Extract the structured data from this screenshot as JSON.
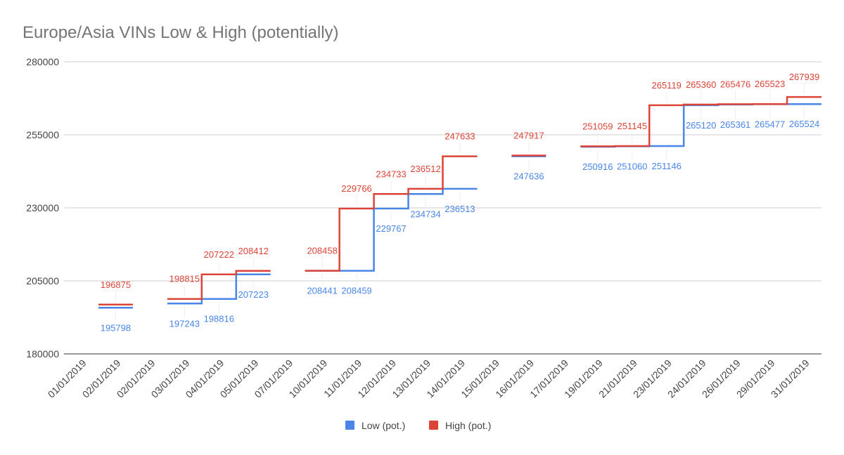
{
  "chart_data": {
    "type": "line",
    "step": true,
    "title": "Europe/Asia VINs Low & High (potentially)",
    "xlabel": "",
    "ylabel": "",
    "ylim": [
      180000,
      280000
    ],
    "yticks": [
      "180000",
      "205000",
      "230000",
      "255000",
      "280000"
    ],
    "grid": true,
    "legend_position": "bottom",
    "categories": [
      "01/01/2019",
      "02/01/2019",
      "02/01/2019",
      "03/01/2019",
      "04/01/2019",
      "05/01/2019",
      "07/01/2019",
      "10/01/2019",
      "11/01/2019",
      "12/01/2019",
      "13/01/2019",
      "14/01/2019",
      "15/01/2019",
      "16/01/2019",
      "17/01/2019",
      "19/01/2019",
      "21/01/2019",
      "23/01/2019",
      "24/01/2019",
      "26/01/2019",
      "29/01/2019",
      "31/01/2019"
    ],
    "series": [
      {
        "name": "Low (pot.)",
        "color": "#4a86e8",
        "values": [
          null,
          195798,
          null,
          197243,
          198816,
          207223,
          null,
          208441,
          208459,
          229767,
          234734,
          236513,
          null,
          247636,
          null,
          250916,
          251060,
          251146,
          265120,
          265361,
          265477,
          265524
        ],
        "labels": [
          "",
          "195798",
          "",
          "197243",
          "198816",
          "207223",
          "",
          "208441",
          "208459",
          "229767",
          "234734",
          "236513",
          "",
          "247636",
          "",
          "250916",
          "251060",
          "251146",
          "265120",
          "265361",
          "265477",
          "265524"
        ]
      },
      {
        "name": "High (pot.)",
        "color": "#db4437",
        "values": [
          null,
          196875,
          null,
          198815,
          207222,
          208412,
          null,
          208458,
          229766,
          234733,
          236512,
          247633,
          null,
          247917,
          null,
          251059,
          251145,
          265119,
          265360,
          265476,
          265523,
          267939
        ],
        "labels": [
          "",
          "196875",
          "",
          "198815",
          "207222",
          "208412",
          "",
          "208458",
          "229766",
          "234733",
          "236512",
          "247633",
          "",
          "247917",
          "",
          "251059",
          "251145",
          "265119",
          "265360",
          "265476",
          "265523",
          "267939"
        ]
      }
    ]
  }
}
